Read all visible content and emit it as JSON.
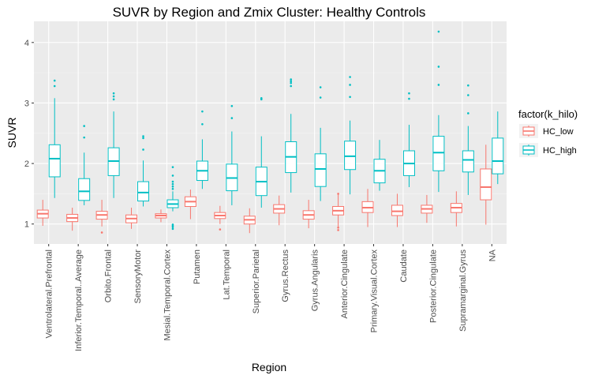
{
  "chart_data": {
    "type": "boxplot",
    "title": "SUVR by Region and Zmix Cluster: Healthy Controls",
    "xlabel": "Region",
    "ylabel": "SUVR",
    "ylim": [
      0.67,
      4.35
    ],
    "yticks": [
      1,
      2,
      3,
      4
    ],
    "grid": true,
    "legend": {
      "title": "factor(k_hilo)",
      "position": "right"
    },
    "categories": [
      "Ventrolateral.Prefrontal",
      "Inferior.Temporal..Average",
      "Orbito.Frontal",
      "SensoryMotor",
      "Mesial.Temporal.Cortex",
      "Putamen",
      "Lat.Temporal",
      "Superior.Parietal",
      "Gyrus.Rectus",
      "Gyrus.Angularis",
      "Anterior.Cingulate",
      "Primary.Visual.Cortex",
      "Caudate",
      "Posterior.Cingulate",
      "Supramarginal.Gyrus",
      "NA"
    ],
    "series": [
      {
        "name": "HC_low",
        "color": "#F8766D",
        "boxes": [
          {
            "min": 0.97,
            "q1": 1.1,
            "median": 1.17,
            "q3": 1.23,
            "max": 1.4,
            "outliers": []
          },
          {
            "min": 0.89,
            "q1": 1.04,
            "median": 1.1,
            "q3": 1.16,
            "max": 1.27,
            "outliers": []
          },
          {
            "min": 0.96,
            "q1": 1.08,
            "median": 1.15,
            "q3": 1.21,
            "max": 1.4,
            "outliers": [
              0.86
            ]
          },
          {
            "min": 0.92,
            "q1": 1.02,
            "median": 1.09,
            "q3": 1.15,
            "max": 1.27,
            "outliers": []
          },
          {
            "min": 1.03,
            "q1": 1.1,
            "median": 1.14,
            "q3": 1.17,
            "max": 1.24,
            "outliers": []
          },
          {
            "min": 1.08,
            "q1": 1.29,
            "median": 1.37,
            "q3": 1.45,
            "max": 1.57,
            "outliers": []
          },
          {
            "min": 1.0,
            "q1": 1.09,
            "median": 1.14,
            "q3": 1.19,
            "max": 1.3,
            "outliers": [
              0.91
            ]
          },
          {
            "min": 0.85,
            "q1": 1.0,
            "median": 1.07,
            "q3": 1.13,
            "max": 1.26,
            "outliers": []
          },
          {
            "min": 0.98,
            "q1": 1.18,
            "median": 1.25,
            "q3": 1.32,
            "max": 1.47,
            "outliers": []
          },
          {
            "min": 0.93,
            "q1": 1.08,
            "median": 1.15,
            "q3": 1.22,
            "max": 1.4,
            "outliers": []
          },
          {
            "min": 0.95,
            "q1": 1.15,
            "median": 1.22,
            "q3": 1.29,
            "max": 1.5,
            "outliers": [
              0.9,
              0.94,
              1.5
            ]
          },
          {
            "min": 0.95,
            "q1": 1.19,
            "median": 1.27,
            "q3": 1.37,
            "max": 1.58,
            "outliers": []
          },
          {
            "min": 0.95,
            "q1": 1.14,
            "median": 1.21,
            "q3": 1.31,
            "max": 1.5,
            "outliers": []
          },
          {
            "min": 1.02,
            "q1": 1.18,
            "median": 1.25,
            "q3": 1.31,
            "max": 1.48,
            "outliers": []
          },
          {
            "min": 0.96,
            "q1": 1.19,
            "median": 1.27,
            "q3": 1.34,
            "max": 1.54,
            "outliers": []
          },
          {
            "min": 0.99,
            "q1": 1.4,
            "median": 1.61,
            "q3": 1.91,
            "max": 2.31,
            "outliers": []
          }
        ]
      },
      {
        "name": "HC_high",
        "color": "#00BFC4",
        "boxes": [
          {
            "min": 1.43,
            "q1": 1.78,
            "median": 2.08,
            "q3": 2.31,
            "max": 3.08,
            "outliers": [
              3.28,
              3.37
            ]
          },
          {
            "min": 1.31,
            "q1": 1.39,
            "median": 1.54,
            "q3": 1.75,
            "max": 2.18,
            "outliers": [
              2.43,
              2.62
            ]
          },
          {
            "min": 1.43,
            "q1": 1.8,
            "median": 2.04,
            "q3": 2.26,
            "max": 2.86,
            "outliers": [
              3.06,
              3.11,
              3.16
            ]
          },
          {
            "min": 1.29,
            "q1": 1.38,
            "median": 1.52,
            "q3": 1.7,
            "max": 2.05,
            "outliers": [
              2.23,
              2.42,
              2.45
            ]
          },
          {
            "min": 1.21,
            "q1": 1.27,
            "median": 1.33,
            "q3": 1.4,
            "max": 1.54,
            "outliers": [
              0.92,
              0.95,
              0.97,
              0.99,
              1.58,
              1.62,
              1.66,
              1.7,
              1.8,
              1.94
            ]
          },
          {
            "min": 1.58,
            "q1": 1.72,
            "median": 1.88,
            "q3": 2.04,
            "max": 2.4,
            "outliers": [
              2.65,
              2.86
            ]
          },
          {
            "min": 1.31,
            "q1": 1.55,
            "median": 1.76,
            "q3": 1.99,
            "max": 2.53,
            "outliers": [
              2.75,
              2.95
            ]
          },
          {
            "min": 1.27,
            "q1": 1.47,
            "median": 1.7,
            "q3": 1.94,
            "max": 2.45,
            "outliers": [
              3.06,
              3.08
            ]
          },
          {
            "min": 1.52,
            "q1": 1.85,
            "median": 2.11,
            "q3": 2.36,
            "max": 2.82,
            "outliers": [
              3.28,
              3.33,
              3.36,
              3.39
            ]
          },
          {
            "min": 1.38,
            "q1": 1.62,
            "median": 1.91,
            "q3": 2.16,
            "max": 2.59,
            "outliers": [
              3.09,
              3.26
            ]
          },
          {
            "min": 1.49,
            "q1": 1.9,
            "median": 2.12,
            "q3": 2.37,
            "max": 2.71,
            "outliers": [
              3.1,
              3.3,
              3.43
            ]
          },
          {
            "min": 1.55,
            "q1": 1.68,
            "median": 1.88,
            "q3": 2.07,
            "max": 2.39,
            "outliers": []
          },
          {
            "min": 1.61,
            "q1": 1.8,
            "median": 2.0,
            "q3": 2.21,
            "max": 2.64,
            "outliers": [
              3.07,
              3.16
            ]
          },
          {
            "min": 1.53,
            "q1": 1.88,
            "median": 2.18,
            "q3": 2.45,
            "max": 2.8,
            "outliers": [
              3.3,
              3.6,
              4.18
            ]
          },
          {
            "min": 1.48,
            "q1": 1.86,
            "median": 2.06,
            "q3": 2.21,
            "max": 2.62,
            "outliers": [
              2.83,
              3.13,
              3.29
            ]
          },
          {
            "min": 1.66,
            "q1": 1.83,
            "median": 2.04,
            "q3": 2.42,
            "max": 2.86,
            "outliers": []
          }
        ]
      }
    ]
  }
}
